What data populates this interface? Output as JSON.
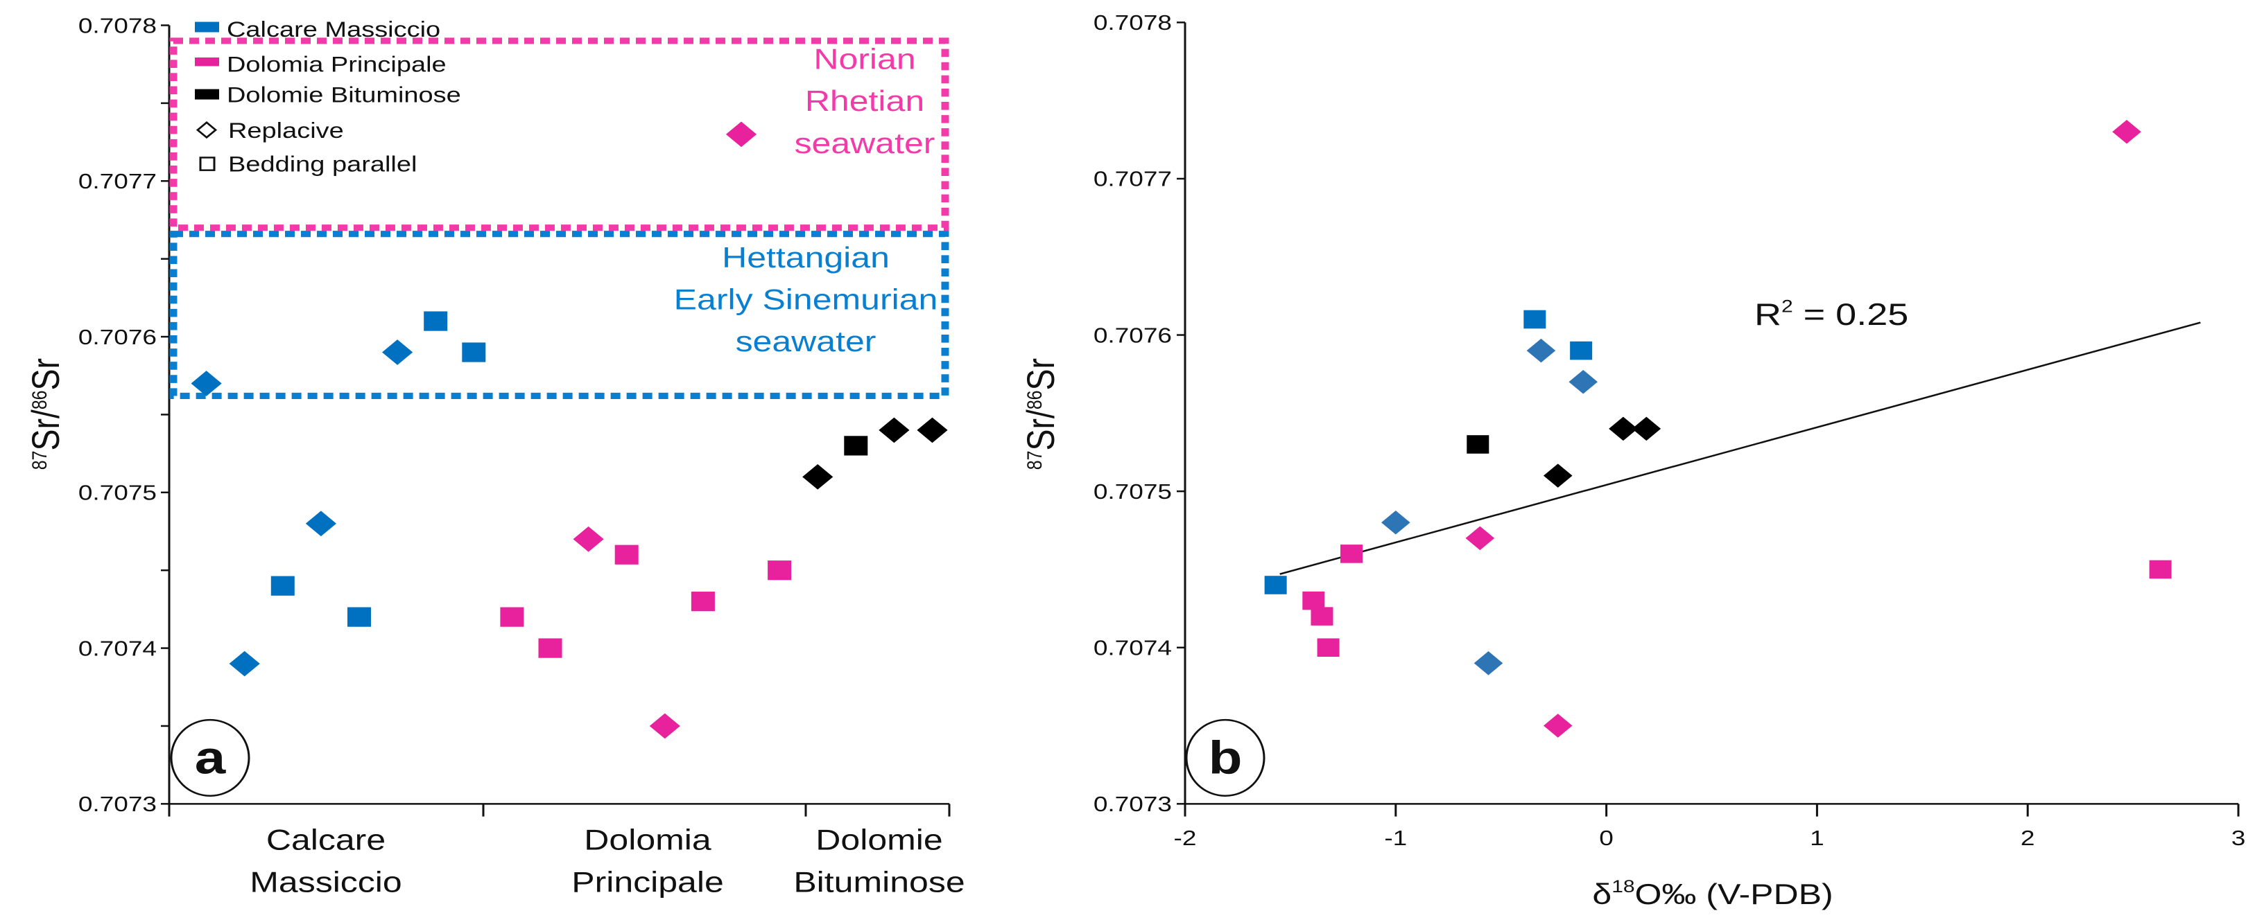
{
  "colors": {
    "calcare": "#0070c0",
    "calcare_b_diamond": "#2e75b6",
    "dolomia": "#e8219c",
    "dolomie": "#000000",
    "box_pink": "#f23aa9",
    "box_blue": "#0a7fd0"
  },
  "chart_data": [
    {
      "type": "scatter",
      "panel_label": "a",
      "ylabel_sup1": "87",
      "ylabel_main1": "Sr/",
      "ylabel_sup2": "86",
      "ylabel_main2": "Sr",
      "ylim": [
        0.7073,
        0.7078
      ],
      "yticks": [
        "0.7078",
        "0.7077",
        "0.7076",
        "0.7075",
        "0.7074",
        "0.7073"
      ],
      "ytick_values": [
        0.7078,
        0.7077,
        0.7076,
        0.7075,
        0.7074,
        0.7073
      ],
      "categories": [
        {
          "line1": "Calcare",
          "line2": "Massiccio"
        },
        {
          "line1": "Dolomia",
          "line2": "Principale"
        },
        {
          "line1": "Dolomie",
          "line2": "Bituminose"
        }
      ],
      "legend": {
        "placement": "top-left",
        "items": [
          "Calcare Massiccio",
          "Dolomia Principale",
          "Dolomie Bituminose",
          "Replacive",
          "Bedding parallel"
        ]
      },
      "annotations": [
        {
          "lines": [
            "Norian",
            "Rhetian",
            "seawater"
          ],
          "range": [
            0.70767,
            0.70779
          ],
          "color": "pink"
        },
        {
          "lines": [
            "Hettangian",
            "Early Sinemurian",
            "seawater"
          ],
          "range": [
            0.707562,
            0.707666
          ],
          "color": "blue"
        }
      ],
      "points": [
        {
          "i": 1,
          "group": "calcare",
          "shape": "diamond",
          "y": 0.70757
        },
        {
          "i": 2,
          "group": "calcare",
          "shape": "diamond",
          "y": 0.70739
        },
        {
          "i": 3,
          "group": "calcare",
          "shape": "square",
          "y": 0.70744
        },
        {
          "i": 4,
          "group": "calcare",
          "shape": "diamond",
          "y": 0.70748
        },
        {
          "i": 5,
          "group": "calcare",
          "shape": "square",
          "y": 0.70742
        },
        {
          "i": 6,
          "group": "calcare",
          "shape": "diamond",
          "y": 0.70759
        },
        {
          "i": 7,
          "group": "calcare",
          "shape": "square",
          "y": 0.70761
        },
        {
          "i": 8,
          "group": "calcare",
          "shape": "square",
          "y": 0.70759
        },
        {
          "i": 9,
          "group": "dolomia",
          "shape": "square",
          "y": 0.70742
        },
        {
          "i": 10,
          "group": "dolomia",
          "shape": "square",
          "y": 0.7074
        },
        {
          "i": 11,
          "group": "dolomia",
          "shape": "diamond",
          "y": 0.70747
        },
        {
          "i": 12,
          "group": "dolomia",
          "shape": "square",
          "y": 0.70746
        },
        {
          "i": 13,
          "group": "dolomia",
          "shape": "diamond",
          "y": 0.70735
        },
        {
          "i": 14,
          "group": "dolomia",
          "shape": "square",
          "y": 0.70743
        },
        {
          "i": 15,
          "group": "dolomia",
          "shape": "diamond",
          "y": 0.70773
        },
        {
          "i": 16,
          "group": "dolomia",
          "shape": "square",
          "y": 0.70745
        },
        {
          "i": 17,
          "group": "dolomie",
          "shape": "diamond",
          "y": 0.70751
        },
        {
          "i": 18,
          "group": "dolomie",
          "shape": "square",
          "y": 0.70753
        },
        {
          "i": 19,
          "group": "dolomie",
          "shape": "diamond",
          "y": 0.70754
        },
        {
          "i": 20,
          "group": "dolomie",
          "shape": "diamond",
          "y": 0.70754
        }
      ]
    },
    {
      "type": "scatter",
      "panel_label": "b",
      "ylabel_sup1": "87",
      "ylabel_main1": "Sr/",
      "ylabel_sup2": "86",
      "ylabel_main2": "Sr",
      "xlabel_pre": "δ",
      "xlabel_sup": "18",
      "xlabel_post": "O‰ (V-PDB)",
      "xlim": [
        -2,
        3
      ],
      "ylim": [
        0.7073,
        0.7078
      ],
      "xticks": [
        "-2",
        "-1",
        "0",
        "1",
        "2",
        "3"
      ],
      "xtick_values": [
        -2,
        -1,
        0,
        1,
        2,
        3
      ],
      "yticks": [
        "0.7078",
        "0.7077",
        "0.7076",
        "0.7075",
        "0.7074",
        "0.7073"
      ],
      "ytick_values": [
        0.7078,
        0.7077,
        0.7076,
        0.7075,
        0.7074,
        0.7073
      ],
      "trendline": {
        "x": [
          -1.55,
          2.82
        ],
        "y": [
          0.707447,
          0.707608
        ],
        "label_main": "R",
        "label_sup": "2",
        "label_rest": " = 0.25"
      },
      "points": [
        {
          "x": -1.57,
          "y": 0.70744,
          "group": "calcare",
          "shape": "square"
        },
        {
          "x": -0.34,
          "y": 0.70761,
          "group": "calcare",
          "shape": "square"
        },
        {
          "x": -0.12,
          "y": 0.70759,
          "group": "calcare",
          "shape": "square"
        },
        {
          "x": -0.31,
          "y": 0.70759,
          "group": "calcare_b_diamond",
          "shape": "diamond"
        },
        {
          "x": -0.11,
          "y": 0.70757,
          "group": "calcare_b_diamond",
          "shape": "diamond"
        },
        {
          "x": -1.0,
          "y": 0.70748,
          "group": "calcare_b_diamond",
          "shape": "diamond"
        },
        {
          "x": -0.56,
          "y": 0.70739,
          "group": "calcare_b_diamond",
          "shape": "diamond"
        },
        {
          "x": -0.61,
          "y": 0.70753,
          "group": "dolomie",
          "shape": "square"
        },
        {
          "x": -0.23,
          "y": 0.70751,
          "group": "dolomie",
          "shape": "diamond"
        },
        {
          "x": 0.08,
          "y": 0.70754,
          "group": "dolomie",
          "shape": "diamond"
        },
        {
          "x": 0.19,
          "y": 0.70754,
          "group": "dolomie",
          "shape": "diamond"
        },
        {
          "x": -1.21,
          "y": 0.70746,
          "group": "dolomia",
          "shape": "square"
        },
        {
          "x": -1.39,
          "y": 0.70743,
          "group": "dolomia",
          "shape": "square"
        },
        {
          "x": -1.35,
          "y": 0.70742,
          "group": "dolomia",
          "shape": "square"
        },
        {
          "x": -1.32,
          "y": 0.7074,
          "group": "dolomia",
          "shape": "square"
        },
        {
          "x": 2.63,
          "y": 0.70745,
          "group": "dolomia",
          "shape": "square"
        },
        {
          "x": -0.6,
          "y": 0.70747,
          "group": "dolomia",
          "shape": "diamond"
        },
        {
          "x": -0.23,
          "y": 0.70735,
          "group": "dolomia",
          "shape": "diamond"
        },
        {
          "x": 2.47,
          "y": 0.70773,
          "group": "dolomia",
          "shape": "diamond"
        }
      ]
    }
  ]
}
